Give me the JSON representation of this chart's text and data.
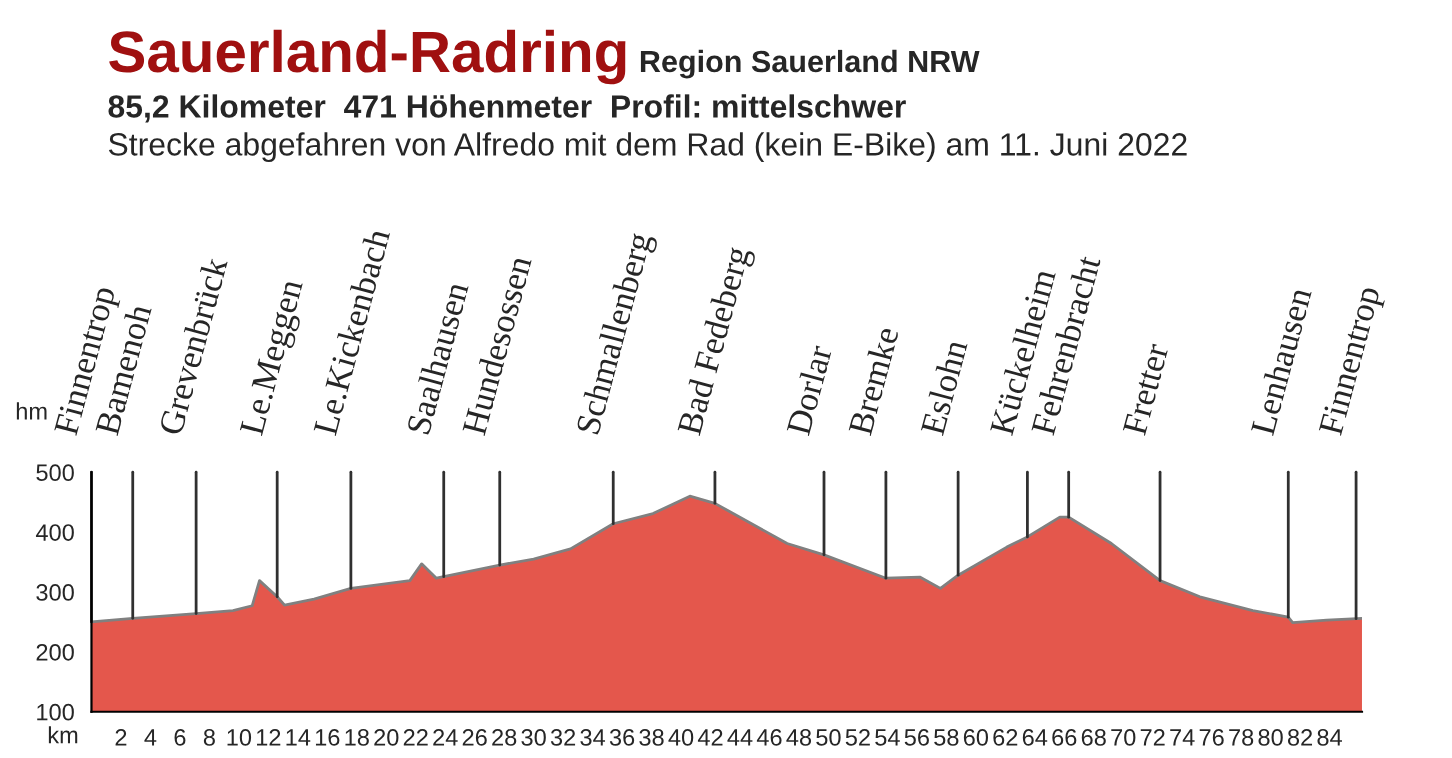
{
  "chart_data": {
    "type": "area",
    "title": "Sauerland-Radring",
    "subtitle": "Region Sauerland NRW",
    "annotations": [
      "85,2 Kilometer  471 Höhenmeter  Profil: mittelschwer",
      "Strecke abgefahren von Alfredo mit dem Rad (kein E-Bike) am 11. Juni 2022"
    ],
    "xlabel": "km",
    "ylabel": "hm",
    "x": [
      0,
      2.8,
      7.1,
      9.6,
      10.9,
      11.4,
      12.6,
      13.1,
      15.1,
      17.6,
      21.6,
      22.4,
      23.4,
      27.7,
      30.0,
      32.5,
      35.4,
      38.1,
      40.6,
      42.3,
      47.2,
      49.7,
      53.9,
      56.2,
      57.6,
      58.8,
      62.1,
      63.5,
      65.7,
      66.3,
      69.2,
      72.5,
      75.2,
      78.8,
      81.2,
      81.5,
      83.8,
      86.2
    ],
    "series": [
      {
        "color": "#e4574c",
        "values": [
          250,
          256,
          264,
          269,
          277,
          319,
          292,
          278,
          288,
          306,
          319,
          347,
          323,
          345,
          355,
          372,
          414,
          431,
          460,
          448,
          381,
          362,
          323,
          325,
          306,
          328,
          375,
          392,
          425,
          425,
          381,
          319,
          292,
          269,
          258,
          249,
          253,
          256
        ]
      }
    ],
    "xlim": [
      0,
      86.2
    ],
    "ylim": [
      100,
      500
    ],
    "xticks": [
      2,
      4,
      6,
      8,
      10,
      12,
      14,
      16,
      18,
      20,
      22,
      24,
      26,
      28,
      30,
      32,
      34,
      36,
      38,
      40,
      42,
      44,
      46,
      48,
      50,
      52,
      54,
      56,
      58,
      60,
      62,
      64,
      66,
      68,
      70,
      72,
      74,
      76,
      78,
      80,
      82,
      84
    ],
    "yticks": [
      100,
      200,
      300,
      400,
      500
    ],
    "grid": false,
    "legend": false,
    "ref_lines": [
      {
        "axis": "x",
        "value": 0,
        "label": "Finnentrop"
      },
      {
        "axis": "x",
        "value": 2.8,
        "label": "Bamenoh"
      },
      {
        "axis": "x",
        "value": 7.1,
        "label": "Grevenbrück"
      },
      {
        "axis": "x",
        "value": 12.6,
        "label": "Le.Meggen"
      },
      {
        "axis": "x",
        "value": 17.6,
        "label": "Le.Kickenbach"
      },
      {
        "axis": "x",
        "value": 23.9,
        "label": "Saalhausen"
      },
      {
        "axis": "x",
        "value": 27.7,
        "label": "Hundesossen"
      },
      {
        "axis": "x",
        "value": 35.4,
        "label": "Schmallenberg"
      },
      {
        "axis": "x",
        "value": 42.3,
        "label": "Bad Fedeberg"
      },
      {
        "axis": "x",
        "value": 49.7,
        "label": "Dorlar"
      },
      {
        "axis": "x",
        "value": 53.9,
        "label": "Bremke"
      },
      {
        "axis": "x",
        "value": 58.8,
        "label": "Eslohn"
      },
      {
        "axis": "x",
        "value": 63.5,
        "label": "Kückelheim"
      },
      {
        "axis": "x",
        "value": 66.3,
        "label": "Fehrenbracht"
      },
      {
        "axis": "x",
        "value": 72.5,
        "label": "Fretter"
      },
      {
        "axis": "x",
        "value": 81.2,
        "label": "Lenhausen"
      },
      {
        "axis": "x",
        "value": 85.8,
        "label": "Finnentrop"
      }
    ]
  }
}
